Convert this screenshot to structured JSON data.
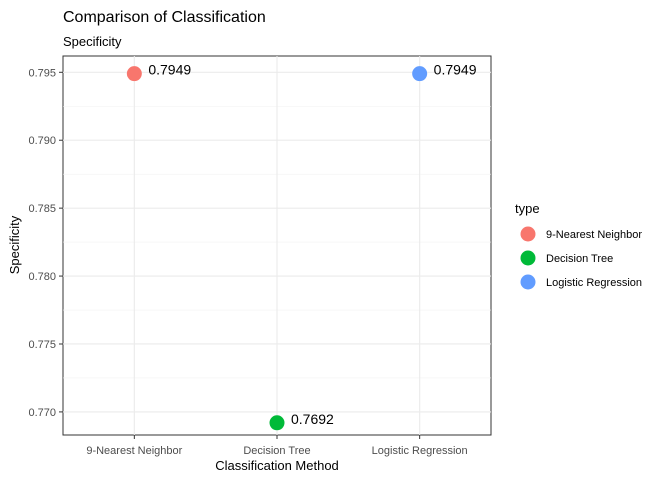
{
  "chart_data": {
    "type": "scatter",
    "title": "Comparison of Classification",
    "subtitle": "Specificity",
    "xlabel": "Classification Method",
    "ylabel": "Specificity",
    "categories": [
      "9-Nearest Neighbor",
      "Decision Tree",
      "Logistic Regression"
    ],
    "ylim": [
      0.7683,
      0.7962
    ],
    "yticks": [
      0.77,
      0.775,
      0.78,
      0.785,
      0.79,
      0.795
    ],
    "ytick_labels": [
      "0.770",
      "0.775",
      "0.780",
      "0.785",
      "0.790",
      "0.795"
    ],
    "grid": true,
    "legend": {
      "title": "type",
      "position": "right",
      "entries": [
        "9-Nearest Neighbor",
        "Decision Tree",
        "Logistic Regression"
      ]
    },
    "series": [
      {
        "name": "9-Nearest Neighbor",
        "x": "9-Nearest Neighbor",
        "y": 0.7949,
        "label": "0.7949",
        "color": "#F8766D"
      },
      {
        "name": "Decision Tree",
        "x": "Decision Tree",
        "y": 0.7692,
        "label": "0.7692",
        "color": "#00BA38"
      },
      {
        "name": "Logistic Regression",
        "x": "Logistic Regression",
        "y": 0.7949,
        "label": "0.7949",
        "color": "#619CFF"
      }
    ]
  }
}
